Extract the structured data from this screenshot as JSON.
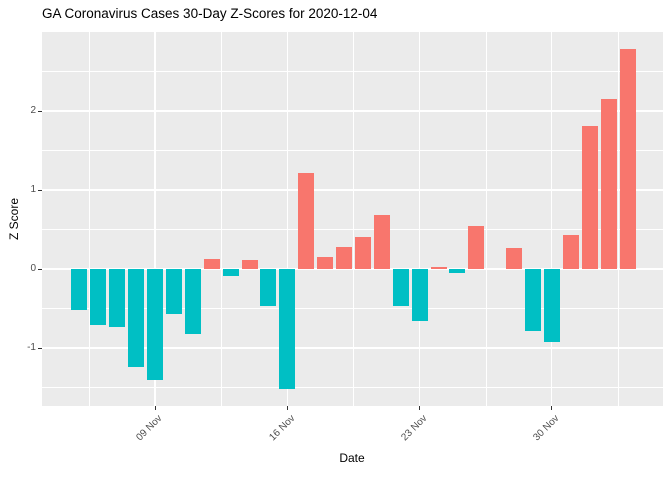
{
  "chart_data": {
    "type": "bar",
    "title": "GA Coronavirus Cases 30-Day Z-Scores for 2020-12-04",
    "xlabel": "Date",
    "ylabel": "Z Score",
    "x": [
      "2020-11-05",
      "2020-11-06",
      "2020-11-07",
      "2020-11-08",
      "2020-11-09",
      "2020-11-10",
      "2020-11-11",
      "2020-11-12",
      "2020-11-13",
      "2020-11-14",
      "2020-11-15",
      "2020-11-16",
      "2020-11-17",
      "2020-11-18",
      "2020-11-19",
      "2020-11-20",
      "2020-11-21",
      "2020-11-22",
      "2020-11-23",
      "2020-11-24",
      "2020-11-25",
      "2020-11-26",
      "2020-11-27",
      "2020-11-28",
      "2020-11-29",
      "2020-11-30",
      "2020-12-01",
      "2020-12-02",
      "2020-12-03",
      "2020-12-04"
    ],
    "values": [
      -0.52,
      -0.71,
      -0.73,
      -1.24,
      -1.4,
      -0.57,
      -0.82,
      0.13,
      -0.09,
      0.12,
      -0.47,
      -1.52,
      1.21,
      0.15,
      0.28,
      0.4,
      0.68,
      -0.47,
      -0.66,
      0.03,
      -0.05,
      0.55,
      0.0,
      0.26,
      -0.79,
      -0.93,
      0.43,
      1.81,
      2.15,
      2.78
    ],
    "x_tick_labels": [
      "09 Nov",
      "16 Nov",
      "23 Nov",
      "30 Nov"
    ],
    "x_tick_day_index": [
      4,
      11,
      18,
      25
    ],
    "x_minor_day_index": [
      0.5,
      7.5,
      14.5,
      21.5,
      28.5
    ],
    "y_tick_labels": [
      "2",
      "1",
      "0",
      "-1"
    ],
    "y_ticks": [
      2,
      1,
      0,
      -1
    ],
    "y_minor_ticks": [
      2.5,
      1.5,
      0.5,
      -0.5,
      -1.5
    ],
    "ylim": [
      -1.73,
      3.0
    ],
    "grid": true,
    "legend": "none",
    "colors": {
      "positive_bar": "#F8766D",
      "negative_bar": "#00BFC4",
      "panel_background": "#EBEBEB",
      "gridline": "#FFFFFF",
      "tick_text": "#4D4D4D",
      "axis_text": "#000000",
      "tick_mark": "#333333"
    }
  }
}
